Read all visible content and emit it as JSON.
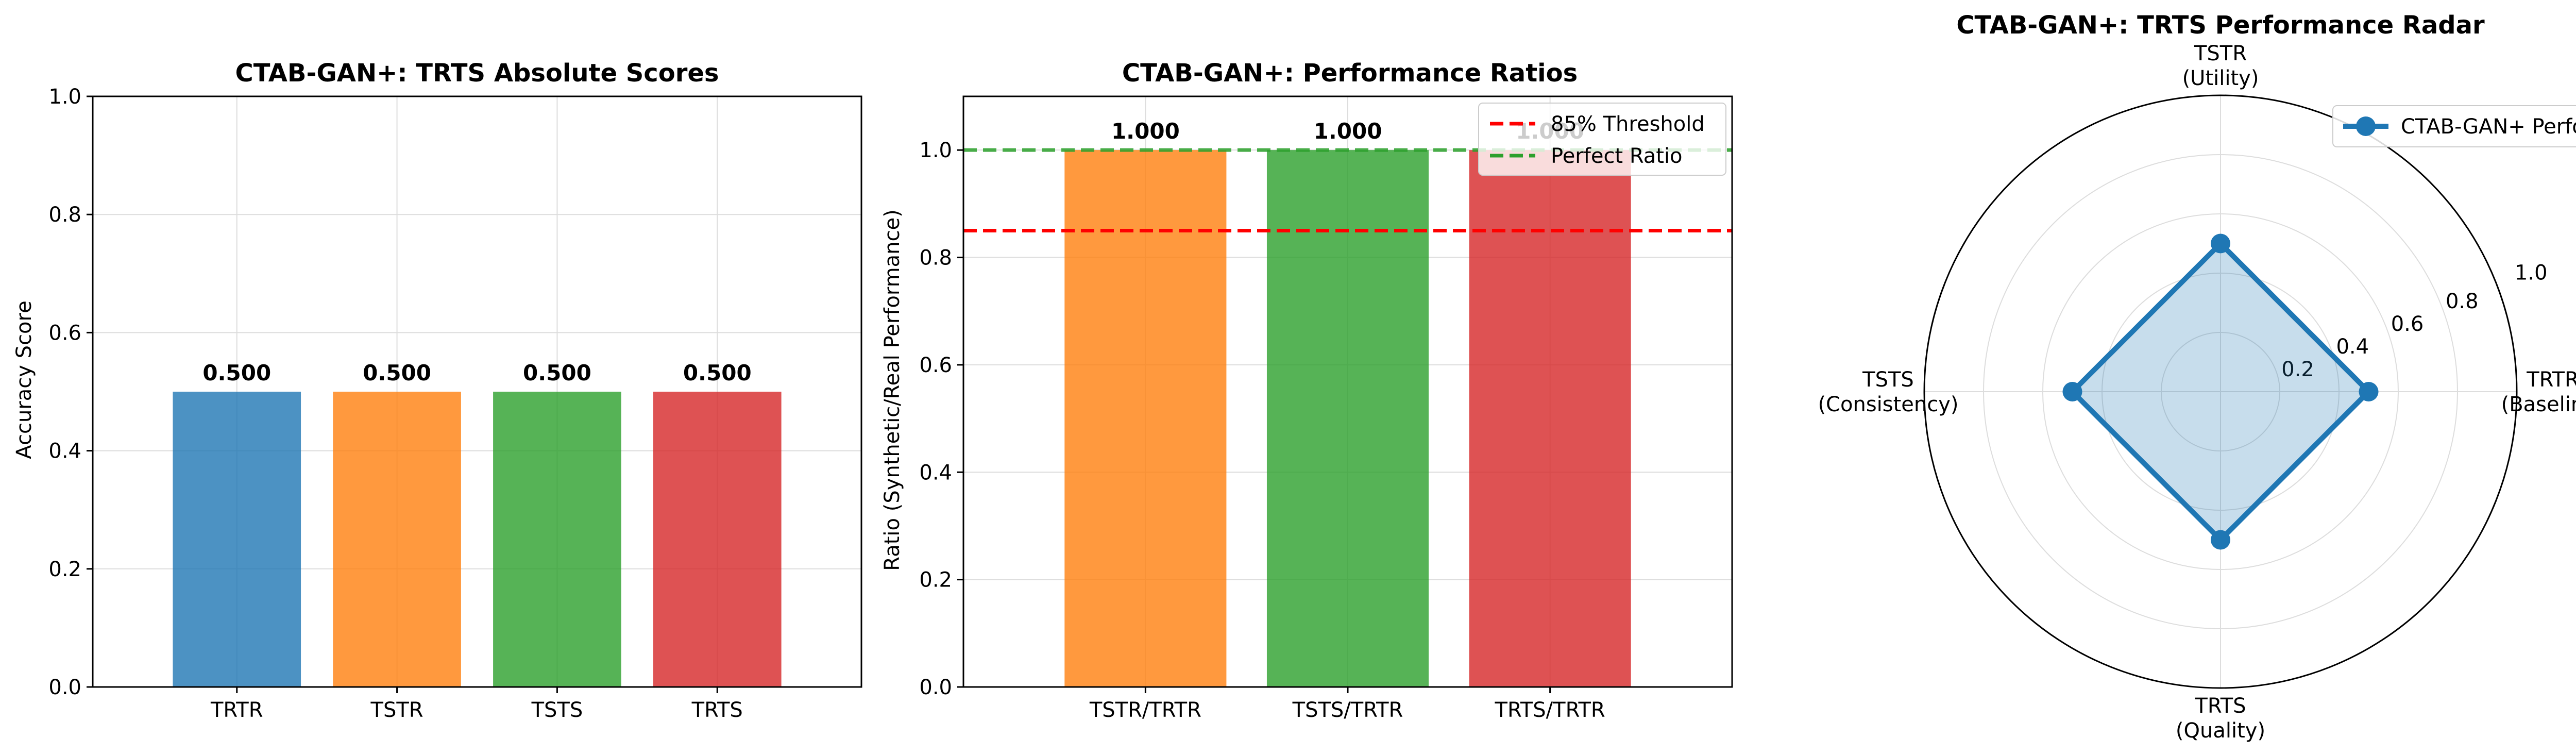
{
  "chart_data": [
    {
      "type": "bar",
      "title": "CTAB-GAN+: TRTS Absolute Scores",
      "xlabel": "",
      "ylabel": "Accuracy Score",
      "ylim": [
        0,
        1.0
      ],
      "yticks": [
        "0.0",
        "0.2",
        "0.4",
        "0.6",
        "0.8",
        "1.0"
      ],
      "grid": true,
      "categories": [
        "TRTR",
        "TSTR",
        "TSTS",
        "TRTS"
      ],
      "values": [
        0.5,
        0.5,
        0.5,
        0.5
      ],
      "value_labels": [
        "0.500",
        "0.500",
        "0.500",
        "0.500"
      ],
      "colors": [
        "#1f77b4",
        "#ff7f0e",
        "#2ca02c",
        "#d62728"
      ]
    },
    {
      "type": "bar",
      "title": "CTAB-GAN+: Performance Ratios",
      "xlabel": "",
      "ylabel": "Ratio (Synthetic/Real Performance)",
      "ylim": [
        0,
        1.1
      ],
      "yticks": [
        "0.0",
        "0.2",
        "0.4",
        "0.6",
        "0.8",
        "1.0"
      ],
      "grid": true,
      "categories": [
        "TSTR/TRTR",
        "TSTS/TRTR",
        "TRTS/TRTR"
      ],
      "values": [
        1.0,
        1.0,
        1.0
      ],
      "value_labels": [
        "1.000",
        "1.000",
        "1.000"
      ],
      "colors": [
        "#ff7f0e",
        "#2ca02c",
        "#d62728"
      ],
      "reference_lines": [
        {
          "label": "85% Threshold",
          "y": 0.85,
          "color": "#ff0000"
        },
        {
          "label": "Perfect Ratio",
          "y": 1.0,
          "color": "#2ca02c"
        }
      ],
      "legend_position": "top-right"
    },
    {
      "type": "radar",
      "title": "CTAB-GAN+: TRTS Performance Radar",
      "axes": [
        {
          "name": "TRTR",
          "sub": "(Baseline)"
        },
        {
          "name": "TSTR",
          "sub": "(Utility)"
        },
        {
          "name": "TSTS",
          "sub": "(Consistency)"
        },
        {
          "name": "TRTS",
          "sub": "(Quality)"
        }
      ],
      "rlim": [
        0,
        1.0
      ],
      "rticks": [
        "0.2",
        "0.4",
        "0.6",
        "0.8",
        "1.0"
      ],
      "grid": true,
      "series": [
        {
          "name": "CTAB-GAN+ Performance",
          "values": [
            0.5,
            0.5,
            0.5,
            0.5
          ],
          "color": "#1f77b4"
        }
      ],
      "legend_position": "top-right"
    }
  ]
}
